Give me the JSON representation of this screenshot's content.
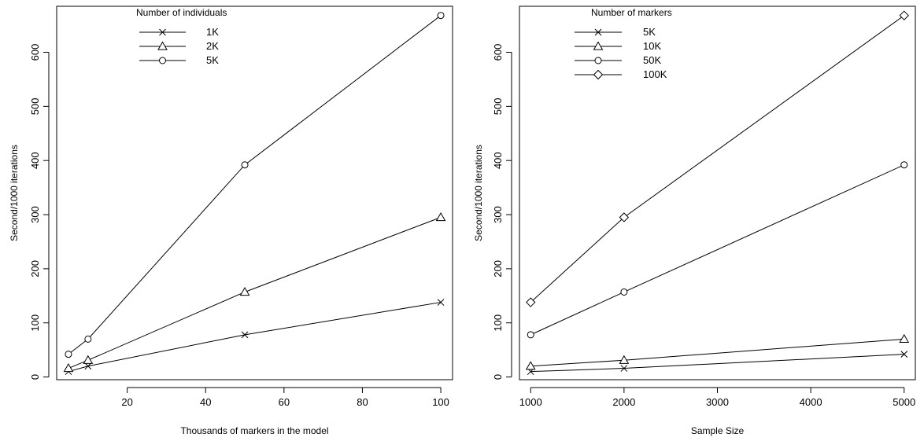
{
  "chart_data": [
    {
      "type": "line",
      "title": "",
      "xlabel": "Thousands of markers in the model",
      "ylabel": "Second/1000 iterations",
      "xlim": [
        2,
        103
      ],
      "ylim": [
        -5,
        685
      ],
      "xticks": [
        20,
        40,
        60,
        80,
        100
      ],
      "yticks": [
        0,
        100,
        200,
        300,
        400,
        500,
        600
      ],
      "legend_title": "Number of individuals",
      "legend_position": "top-left",
      "series": [
        {
          "name": "1K",
          "marker": "x",
          "x": [
            5,
            10,
            50,
            100
          ],
          "values": [
            10,
            20,
            78,
            138
          ]
        },
        {
          "name": "2K",
          "marker": "triangle",
          "x": [
            5,
            10,
            50,
            100
          ],
          "values": [
            16,
            31,
            157,
            295
          ]
        },
        {
          "name": "5K",
          "marker": "circle",
          "x": [
            5,
            10,
            50,
            100
          ],
          "values": [
            42,
            70,
            392,
            668
          ]
        }
      ]
    },
    {
      "type": "line",
      "title": "",
      "xlabel": "Sample Size",
      "ylabel": "Second/1000 iterations",
      "xlim": [
        880,
        5120
      ],
      "ylim": [
        -5,
        685
      ],
      "xticks": [
        1000,
        2000,
        3000,
        4000,
        5000
      ],
      "yticks": [
        0,
        100,
        200,
        300,
        400,
        500,
        600
      ],
      "legend_title": "Number of markers",
      "legend_position": "top-left",
      "series": [
        {
          "name": "5K",
          "marker": "x",
          "x": [
            1000,
            2000,
            5000
          ],
          "values": [
            10,
            16,
            42
          ]
        },
        {
          "name": "10K",
          "marker": "triangle",
          "x": [
            1000,
            2000,
            5000
          ],
          "values": [
            20,
            31,
            70
          ]
        },
        {
          "name": "50K",
          "marker": "circle",
          "x": [
            1000,
            2000,
            5000
          ],
          "values": [
            78,
            157,
            392
          ]
        },
        {
          "name": "100K",
          "marker": "diamond",
          "x": [
            1000,
            2000,
            5000
          ],
          "values": [
            138,
            295,
            668
          ]
        }
      ]
    }
  ]
}
